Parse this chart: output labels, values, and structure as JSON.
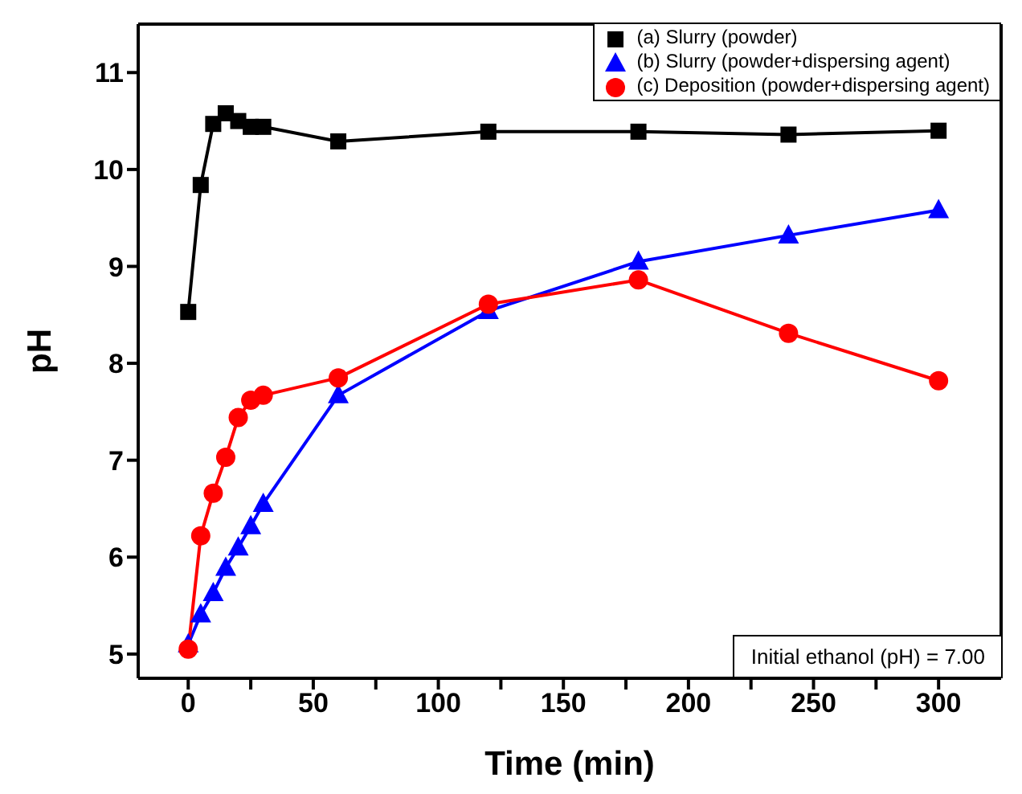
{
  "chart_data": {
    "type": "line",
    "xlabel": "Time (min)",
    "ylabel": "pH",
    "xlim": [
      -20,
      325
    ],
    "xticks": [
      0,
      {
        "value": 25,
        "label": null
      },
      50,
      {
        "value": 75,
        "label": null
      },
      100,
      {
        "value": 125,
        "label": null
      },
      150,
      {
        "value": 175,
        "label": null
      },
      200,
      {
        "value": 225,
        "label": null
      },
      250,
      {
        "value": 275,
        "label": null
      },
      300
    ],
    "ylim": [
      4.75,
      11.5
    ],
    "yticks": [
      5,
      6,
      7,
      8,
      9,
      10,
      11
    ],
    "legend": "top right",
    "annotations": [
      "Initial ethanol (pH) = 7.00"
    ],
    "x": [
      0,
      5,
      10,
      15,
      20,
      25,
      30,
      60,
      120,
      180,
      240,
      300
    ],
    "series": [
      {
        "name": "(a) Slurry (powder)",
        "color": "#000000",
        "marker": "square",
        "values": [
          8.53,
          9.84,
          10.47,
          10.58,
          10.5,
          10.44,
          10.44,
          10.29,
          10.39,
          10.39,
          10.36,
          10.4
        ]
      },
      {
        "name": "(b) Slurry (powder+dispersing agent)",
        "color": "#0000ff",
        "marker": "triangle",
        "values": [
          5.1,
          5.41,
          5.63,
          5.89,
          6.1,
          6.32,
          6.55,
          7.67,
          8.54,
          9.05,
          9.32,
          9.58
        ]
      },
      {
        "name": "(c) Deposition (powder+dispersing agent)",
        "color": "#ff0000",
        "marker": "circle",
        "values": [
          5.05,
          6.22,
          6.66,
          7.03,
          7.44,
          7.62,
          7.67,
          7.85,
          8.61,
          8.86,
          8.31,
          7.82
        ]
      }
    ]
  }
}
